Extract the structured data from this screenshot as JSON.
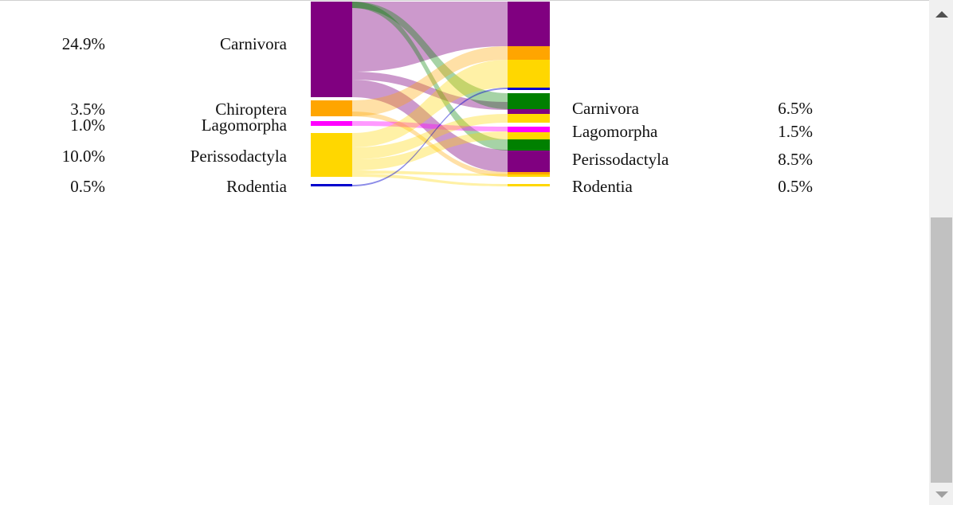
{
  "left_labels": [
    {
      "name": "Carnivora",
      "percent": "24.9%"
    },
    {
      "name": "Chiroptera",
      "percent": "3.5%"
    },
    {
      "name": "Lagomorpha",
      "percent": "1.0%"
    },
    {
      "name": "Perissodactyla",
      "percent": "10.0%"
    },
    {
      "name": "Rodentia",
      "percent": "0.5%"
    }
  ],
  "right_labels": [
    {
      "name": "Carnivora",
      "percent": "6.5%"
    },
    {
      "name": "Lagomorpha",
      "percent": "1.5%"
    },
    {
      "name": "Perissodactyla",
      "percent": "8.5%"
    },
    {
      "name": "Rodentia",
      "percent": "0.5%"
    }
  ],
  "colors": {
    "carnivora": "#800080",
    "chiroptera": "#ffa500",
    "lagomorpha": "#ff00ff",
    "perissodactyla": "#ffd700",
    "rodentia": "#0000cd",
    "green": "#008000"
  }
}
